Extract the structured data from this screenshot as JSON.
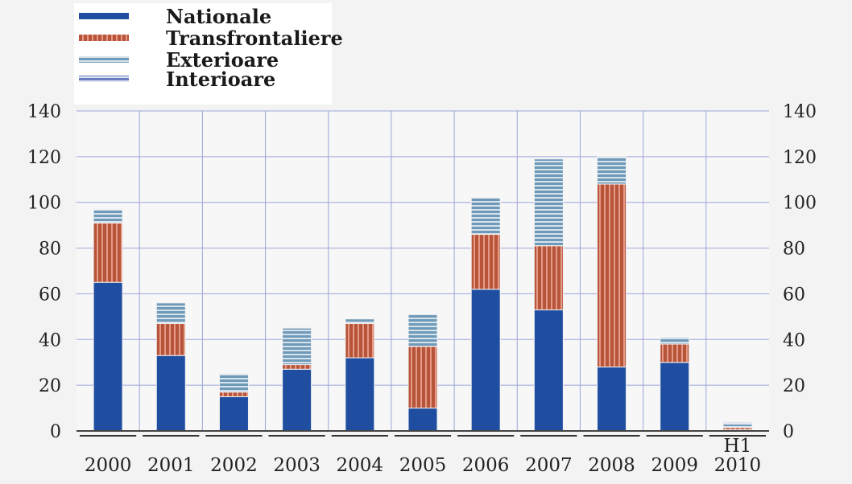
{
  "chart_data": {
    "type": "bar",
    "stacked": true,
    "categories": [
      "2000",
      "2001",
      "2002",
      "2003",
      "2004",
      "2005",
      "2006",
      "2007",
      "2008",
      "2009",
      "H1\n2010"
    ],
    "series": [
      {
        "name": "Nationale",
        "color": "#1f4ea1",
        "pattern": "solid",
        "values": [
          65,
          33,
          15,
          27,
          32,
          10,
          62,
          53,
          28,
          30,
          0.5
        ]
      },
      {
        "name": "Transfrontaliere",
        "color": "#c8694f",
        "pattern": "vertical-stripes",
        "values": [
          26,
          14,
          2,
          2,
          15,
          27,
          24,
          28,
          80,
          8,
          1
        ]
      },
      {
        "name": "Exterioare",
        "color": "#86a9c3",
        "pattern": "horizontal-stripes",
        "values": [
          6,
          9,
          8,
          16,
          2,
          14,
          16,
          38,
          12,
          3,
          1.5
        ]
      },
      {
        "name": "Interioare",
        "color": "#6f7fbd",
        "pattern": "horizontal-stripes",
        "values": [
          0,
          0,
          0,
          0,
          0,
          0,
          0,
          0,
          0,
          0,
          1
        ]
      }
    ],
    "ylim": [
      0,
      140
    ],
    "yticks": [
      0,
      20,
      40,
      60,
      80,
      100,
      120,
      140
    ],
    "ytick_labels": [
      "0",
      "20",
      "40",
      "60",
      "80",
      "100",
      "120",
      "140"
    ],
    "grid": true,
    "legend_position": "top-left",
    "title": "",
    "xlabel": "",
    "ylabel": ""
  }
}
